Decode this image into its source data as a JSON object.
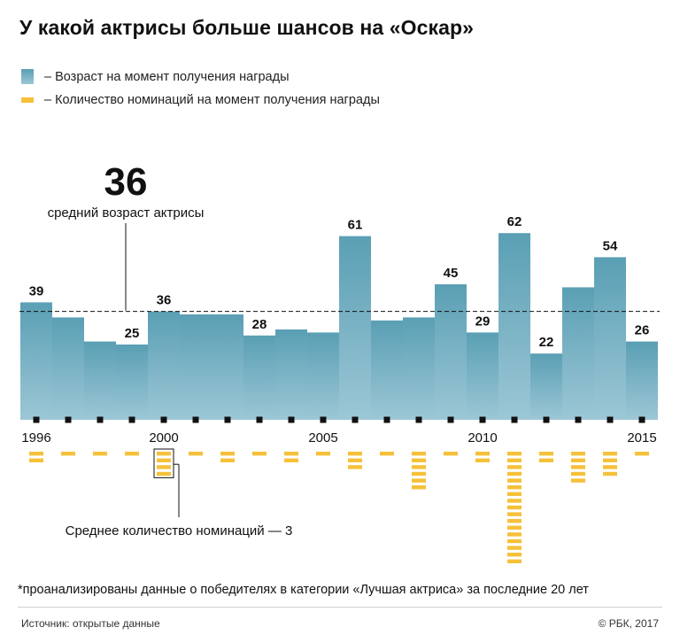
{
  "title": "У какой актрисы больше шансов на «Оскар»",
  "legend": {
    "age": "– Возраст на момент получения награды",
    "nominations": "– Количество номинаций на момент получения награды"
  },
  "chart_data": {
    "type": "bar",
    "x": [
      1996,
      1997,
      1998,
      1999,
      2000,
      2001,
      2002,
      2003,
      2004,
      2005,
      2006,
      2007,
      2008,
      2009,
      2010,
      2011,
      2012,
      2013,
      2014,
      2015
    ],
    "x_tick_labels": [
      {
        "year": 1996,
        "label": "1996"
      },
      {
        "year": 2000,
        "label": "2000"
      },
      {
        "year": 2005,
        "label": "2005"
      },
      {
        "year": 2010,
        "label": "2010"
      },
      {
        "year": 2015,
        "label": "2015"
      }
    ],
    "series": [
      {
        "name": "Возраст на момент получения награды",
        "values": [
          39,
          34,
          26,
          25,
          36,
          35,
          35,
          28,
          30,
          29,
          61,
          33,
          34,
          45,
          29,
          62,
          22,
          44,
          54,
          26
        ],
        "data_labels": [
          {
            "year": 1996,
            "label": "39"
          },
          {
            "year": 1999,
            "label": "25"
          },
          {
            "year": 2000,
            "label": "36"
          },
          {
            "year": 2003,
            "label": "28"
          },
          {
            "year": 2006,
            "label": "61"
          },
          {
            "year": 2009,
            "label": "45"
          },
          {
            "year": 2010,
            "label": "29"
          },
          {
            "year": 2011,
            "label": "62"
          },
          {
            "year": 2012,
            "label": "22"
          },
          {
            "year": 2014,
            "label": "54"
          },
          {
            "year": 2015,
            "label": "26"
          }
        ]
      },
      {
        "name": "Количество номинаций на момент получения награды",
        "values": [
          2,
          1,
          1,
          1,
          4,
          1,
          2,
          1,
          2,
          1,
          3,
          1,
          6,
          1,
          2,
          17,
          2,
          5,
          4,
          1
        ]
      }
    ],
    "ylim": [
      0,
      65
    ],
    "average_age": 36,
    "average_age_number": "36",
    "average_age_text": "средний возраст актрисы",
    "average_nominations_text": "Среднее количество номинаций — 3",
    "highlight_nominations_year": 2000,
    "colors": {
      "bar_top": "#5a9fb4",
      "bar_bottom": "#9cc7d6",
      "nominations": "#f5c13a",
      "ticks": "#111111"
    }
  },
  "footnote": "*проанализированы данные о победителях в категории «Лучшая актриса» за последние 20 лет",
  "source": "Источник: открытые данные",
  "copyright": "© РБК, 2017"
}
